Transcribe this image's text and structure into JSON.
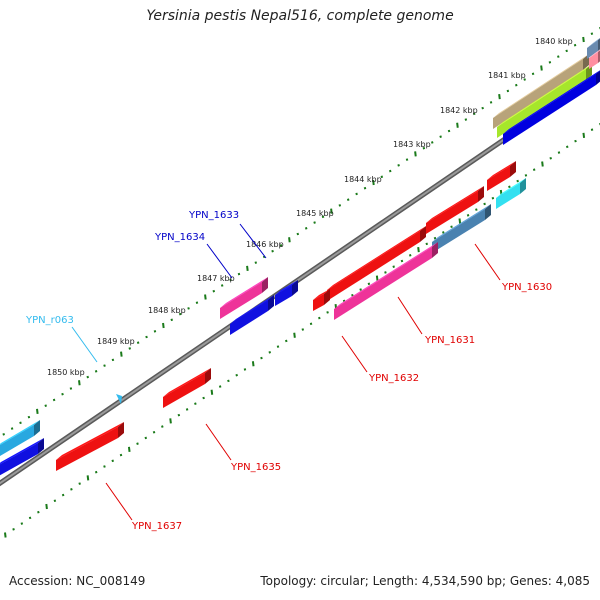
{
  "title": "Yersinia pestis Nepal516, complete genome",
  "accession_text": "Accession: NC_008149",
  "summary_text": "Topology: circular; Length: 4,534,590 bp; Genes: 4,085",
  "colors": {
    "backbone": "#808080",
    "tick": "#1a7a1a",
    "label_red": "#e00000",
    "label_blue": "#0000c8",
    "label_cyan": "#33bbee"
  },
  "kbp_labels": [
    "1840 kbp",
    "1841 kbp",
    "1842 kbp",
    "1843 kbp",
    "1844 kbp",
    "1845 kbp",
    "1846 kbp",
    "1847 kbp",
    "1848 kbp",
    "1849 kbp",
    "1850 kbp"
  ],
  "gene_labels": [
    "YPN_1630",
    "YPN_1631",
    "YPN_1632",
    "YPN_1633",
    "YPN_1634",
    "YPN_1635",
    "YPN_1637",
    "YPN_r063"
  ]
}
